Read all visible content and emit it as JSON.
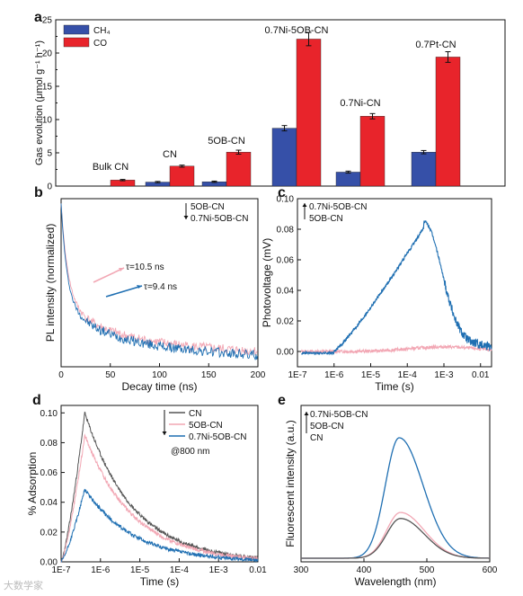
{
  "watermark": "大数学家",
  "chart_data": [
    {
      "id": "a",
      "panel_label": "a",
      "type": "bar",
      "ylabel": "Gas evolution (μmol g⁻¹ h⁻¹)",
      "ylim": [
        0,
        25
      ],
      "yticks": [
        0,
        5,
        10,
        15,
        20,
        25
      ],
      "categories": [
        "Bulk CN",
        "CN",
        "5OB-CN",
        "0.7Ni-5OB-CN",
        "0.7Ni-CN",
        "0.7Pt-CN"
      ],
      "series": [
        {
          "name": "CH₄",
          "color": "#3650a8",
          "values": [
            0.0,
            0.6,
            0.65,
            8.7,
            2.1,
            5.1
          ],
          "errors": [
            0,
            0.1,
            0.1,
            0.4,
            0.15,
            0.25
          ]
        },
        {
          "name": "CO",
          "color": "#e8242b",
          "values": [
            0.9,
            3.0,
            5.1,
            22.1,
            10.5,
            19.4
          ],
          "errors": [
            0.1,
            0.15,
            0.3,
            1.0,
            0.4,
            0.8
          ]
        }
      ],
      "legend": "top-left"
    },
    {
      "id": "b",
      "panel_label": "b",
      "type": "line",
      "xlabel": "Decay time (ns)",
      "ylabel": "PL intensity (normalized)",
      "xlim": [
        0,
        200
      ],
      "xticks": [
        0,
        50,
        100,
        150,
        200
      ],
      "legend_entries": [
        "5OB-CN",
        "0.7Ni-5OB-CN"
      ],
      "annotations": [
        "τ=10.5 ns",
        "τ=9.4 ns"
      ],
      "series": [
        {
          "name": "5OB-CN",
          "color": "#f2a7b4",
          "tau": 10.5,
          "A1": 0.6,
          "tau_fast": 7,
          "tail_tau": 300
        },
        {
          "name": "0.7Ni-5OB-CN",
          "color": "#1f6fb2",
          "tau": 9.4,
          "A1": 0.6,
          "tau_fast": 6,
          "tail_tau": 210
        }
      ]
    },
    {
      "id": "c",
      "panel_label": "c",
      "type": "line",
      "xlabel": "Time (s)",
      "ylabel": "Photovoltage (mV)",
      "xscale": "log",
      "xlim": [
        "1E-7",
        "0.02"
      ],
      "xticks": [
        "1E-7",
        "1E-6",
        "1E-5",
        "1E-4",
        "1E-3",
        "0.01"
      ],
      "ylim": [
        -0.01,
        0.1
      ],
      "yticks": [
        "0.00",
        "0.02",
        "0.04",
        "0.06",
        "0.08",
        "0.10"
      ],
      "legend_entries": [
        "0.7Ni-5OB-CN",
        "5OB-CN"
      ],
      "series": [
        {
          "name": "0.7Ni-5OB-CN",
          "color": "#1f6fb2",
          "peak_time": "3E-4",
          "peak_value": 0.081,
          "rise_from": "1E-6"
        },
        {
          "name": "5OB-CN",
          "color": "#f2a7b4",
          "peak_time": "1E-3",
          "peak_value": 0.003
        }
      ]
    },
    {
      "id": "d",
      "panel_label": "d",
      "type": "line",
      "xlabel": "Time (s)",
      "ylabel": "% Adsorption",
      "xscale": "log",
      "xlim": [
        "1E-7",
        "0.01"
      ],
      "xticks": [
        "1E-7",
        "1E-6",
        "1E-5",
        "1E-4",
        "1E-3",
        "0.01"
      ],
      "ylim": [
        0,
        0.105
      ],
      "yticks": [
        "0.00",
        "0.02",
        "0.04",
        "0.06",
        "0.08",
        "0.10"
      ],
      "legend_entries": [
        "CN",
        "5OB-CN",
        "0.7Ni-5OB-CN"
      ],
      "annotation": "@800 nm",
      "series": [
        {
          "name": "CN",
          "color": "#555555",
          "peak_time": "4E-7",
          "peak_value": 0.1
        },
        {
          "name": "5OB-CN",
          "color": "#f2a7b4",
          "peak_time": "4E-7",
          "peak_value": 0.085
        },
        {
          "name": "0.7Ni-5OB-CN",
          "color": "#1f6fb2",
          "peak_time": "4E-7",
          "peak_value": 0.049
        }
      ]
    },
    {
      "id": "e",
      "panel_label": "e",
      "type": "line",
      "xlabel": "Wavelength (nm)",
      "ylabel": "Fluorescent intensity (a.u.)",
      "xlim": [
        300,
        600
      ],
      "xticks": [
        300,
        400,
        500,
        600
      ],
      "legend_entries": [
        "0.7Ni-5OB-CN",
        "5OB-CN",
        "CN"
      ],
      "series": [
        {
          "name": "0.7Ni-5OB-CN",
          "color": "#1f6fb2",
          "peak_nm": 456,
          "peak_value": 1.0
        },
        {
          "name": "5OB-CN",
          "color": "#f2a7b4",
          "peak_nm": 458,
          "peak_value": 0.38
        },
        {
          "name": "CN",
          "color": "#555555",
          "peak_nm": 458,
          "peak_value": 0.33
        }
      ]
    }
  ]
}
